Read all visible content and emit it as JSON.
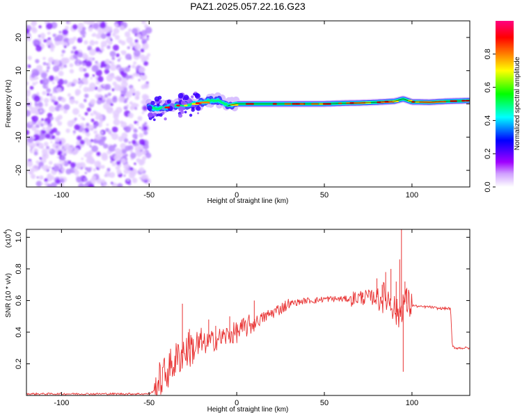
{
  "title": "PAZ1.2025.057.22.16.G23",
  "chart_data": [
    {
      "type": "heatmap",
      "xlabel": "Height of straight line (km)",
      "ylabel": "Frequency (Hz)",
      "xlim": [
        -120,
        133
      ],
      "ylim": [
        -25,
        25
      ],
      "xticks": [
        -100,
        -50,
        0,
        50,
        100
      ],
      "yticks": [
        -20,
        -10,
        0,
        10,
        20
      ],
      "colorbar": {
        "label": "Normalized spectral amplitude",
        "range": [
          0,
          1
        ],
        "ticks": [
          "0.0",
          "0.2",
          "0.4",
          "0.6",
          "0.8"
        ],
        "tick_values": [
          0,
          0.2,
          0.4,
          0.6,
          0.8
        ],
        "colors": [
          "#ffffff",
          "#a000ff",
          "#0000ff",
          "#00ffff",
          "#00ff00",
          "#ffff00",
          "#ff8000",
          "#ff0000",
          "#ff0080"
        ]
      },
      "noise_region_x": [
        -120,
        -50
      ],
      "signal_track": {
        "x": [
          -50,
          -45,
          -40,
          -35,
          -30,
          -25,
          -20,
          -15,
          -10,
          -5,
          0,
          10,
          20,
          30,
          40,
          50,
          60,
          70,
          80,
          90,
          95,
          100,
          110,
          120,
          133
        ],
        "frequency": [
          -1,
          -1.5,
          -1,
          -0.5,
          -0.5,
          0,
          0.5,
          1,
          1,
          -0.5,
          0,
          0,
          0,
          0,
          0,
          0,
          0.2,
          0.3,
          0.5,
          0.8,
          1.5,
          0.6,
          0.5,
          0.8,
          1
        ]
      }
    },
    {
      "type": "line",
      "xlabel": "Height of straight line (km)",
      "ylabel": "SNR (10 * v/v)",
      "scale_label": "(x10",
      "scale_exponent": "4",
      "xlim": [
        -120,
        133
      ],
      "ylim": [
        0,
        1.05
      ],
      "xticks": [
        -100,
        -50,
        0,
        50,
        100
      ],
      "yticks": [
        "0.2",
        "0.4",
        "0.6",
        "0.8",
        "1.0"
      ],
      "ytick_values": [
        0.2,
        0.4,
        0.6,
        0.8,
        1.0
      ],
      "color": "#e83030",
      "series": [
        {
          "x": [
            -120,
            -100,
            -80,
            -60,
            -50,
            -47,
            -45,
            -40,
            -35,
            -30,
            -25,
            -20,
            -15,
            -10,
            -5,
            0,
            5,
            10,
            15,
            20,
            25,
            30,
            35,
            40,
            45,
            50,
            55,
            60,
            65,
            70,
            75,
            80,
            85,
            88,
            90,
            92,
            94,
            95,
            97,
            100,
            105,
            110,
            115,
            120,
            122,
            123,
            125,
            130,
            133
          ],
          "values": [
            0.01,
            0.01,
            0.01,
            0.01,
            0.01,
            0.03,
            0.08,
            0.15,
            0.22,
            0.28,
            0.3,
            0.32,
            0.34,
            0.36,
            0.38,
            0.4,
            0.43,
            0.46,
            0.49,
            0.52,
            0.55,
            0.58,
            0.59,
            0.6,
            0.6,
            0.61,
            0.61,
            0.61,
            0.61,
            0.62,
            0.62,
            0.62,
            0.62,
            0.6,
            0.55,
            0.5,
            0.55,
            0.6,
            0.58,
            0.57,
            0.56,
            0.56,
            0.55,
            0.55,
            0.55,
            0.31,
            0.3,
            0.3,
            0.3
          ]
        }
      ],
      "peaks": {
        "x": [
          -31,
          -27,
          -16,
          -12,
          -4,
          10,
          72,
          80,
          83,
          85,
          88,
          91,
          93,
          94,
          95,
          96,
          97
        ],
        "values": [
          0.58,
          0.42,
          0.48,
          0.44,
          0.5,
          0.6,
          0.65,
          0.74,
          0.7,
          0.78,
          0.8,
          0.72,
          0.86,
          1.05,
          0.15,
          0.72,
          0.68
        ]
      }
    }
  ]
}
